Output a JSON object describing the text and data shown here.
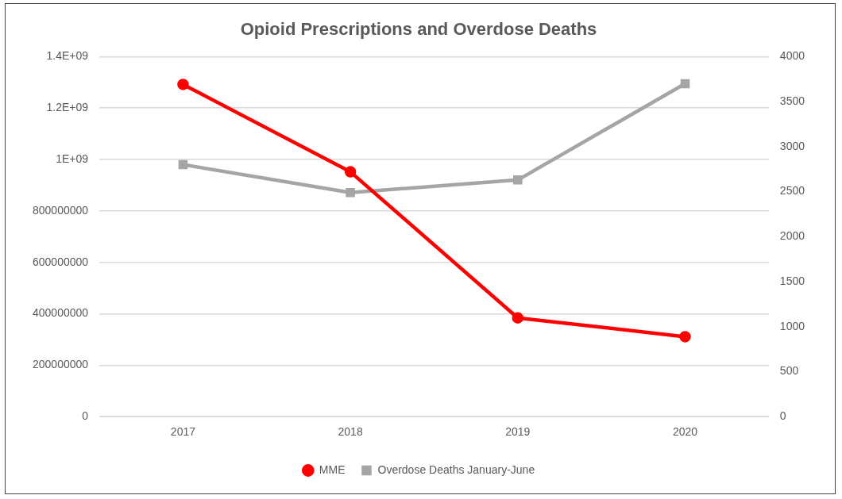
{
  "chart_data": {
    "type": "line",
    "title": "Opioid Prescriptions and Overdose Deaths",
    "categories": [
      "2017",
      "2018",
      "2019",
      "2020"
    ],
    "series": [
      {
        "name": "MME",
        "color": "#ff0000",
        "marker": "circle",
        "values": [
          1292000000,
          952000000,
          384000000,
          311000000
        ]
      },
      {
        "name": "Overdose Deaths January-June",
        "color": "#a5a5a5",
        "marker": "square",
        "axis": "y2",
        "values": [
          2800,
          2490,
          2630,
          3700
        ]
      }
    ],
    "ylim": [
      0,
      1400000000
    ],
    "yticks": [
      0,
      200000000,
      400000000,
      600000000,
      800000000,
      {
        "value": 1000000000,
        "label": "1E+09"
      },
      {
        "value": 1200000000,
        "label": "1.2E+09"
      },
      {
        "value": 1400000000,
        "label": "1.4E+09"
      }
    ],
    "y2lim": [
      0,
      4000
    ],
    "y2ticks": [
      0,
      500,
      1000,
      1500,
      2000,
      2500,
      3000,
      3500,
      4000
    ],
    "grid": "y",
    "legend": "bottom",
    "line_style": "solid"
  }
}
